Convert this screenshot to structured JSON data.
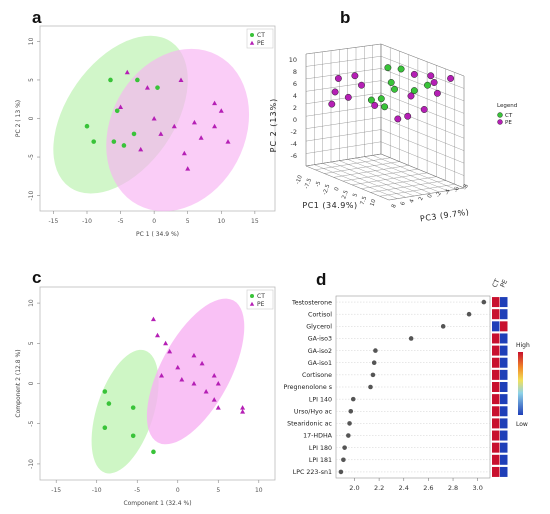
{
  "panels": {
    "a": {
      "letter": "a"
    },
    "b": {
      "letter": "b"
    },
    "c": {
      "letter": "c"
    },
    "d": {
      "letter": "d"
    }
  },
  "colors": {
    "ct": "#39c339",
    "pe": "#b51fb5",
    "ct_fill": "#c9f5bf",
    "pe_fill": "#f7b2f3"
  },
  "chart_data": [
    {
      "id": "a",
      "type": "scatter",
      "title": "",
      "xlabel": "PC 1 ( 34.9 %)",
      "ylabel": "PC 2 ( 13 %)",
      "xlim": [
        -17,
        18
      ],
      "ylim": [
        -12,
        12
      ],
      "xticks": [
        -15,
        -10,
        -5,
        0,
        5,
        10,
        15
      ],
      "yticks": [
        -10,
        -5,
        0,
        5,
        10
      ],
      "legend": [
        "CT",
        "PE"
      ],
      "legend_position": "top-right",
      "series": [
        {
          "name": "CT",
          "marker": "circle",
          "x": [
            -6.5,
            -2.5,
            0.5,
            -5.5,
            -10,
            -9,
            -3,
            -4.5,
            -6
          ],
          "y": [
            5,
            5,
            4,
            1,
            -1,
            -3,
            -2,
            -3.5,
            -3
          ]
        },
        {
          "name": "PE",
          "marker": "triangle",
          "x": [
            -4,
            -1,
            4,
            9,
            10,
            -5,
            0,
            3,
            6,
            9,
            11,
            1,
            7,
            -2,
            4.5,
            5
          ],
          "y": [
            6,
            4,
            5,
            2,
            1,
            1.5,
            0,
            -1,
            -0.5,
            -1,
            -3,
            -2,
            -2.5,
            -4,
            -4.5,
            -6.5
          ]
        }
      ]
    },
    {
      "id": "b",
      "type": "scatter",
      "title": "",
      "xlabel": "PC1 (34.9%)",
      "ylabel": "PC 2 (13%)",
      "zlabel": "PC3 (9.7%)",
      "yticks": [
        "10",
        "8",
        "6",
        "4",
        "2",
        "0",
        "-2",
        "-4",
        "-6"
      ],
      "xticks": [
        "-10",
        "-7.5",
        "-5",
        "-2.5",
        "0",
        "2.5",
        "5",
        "7.5",
        "10"
      ],
      "zticks": [
        "8",
        "6",
        "4",
        "2",
        "0",
        "-2",
        "-4",
        "-6",
        "-8"
      ],
      "legend_title": "Legend",
      "legend": [
        "CT",
        "PE"
      ],
      "legend_position": "right",
      "series": [
        {
          "name": "CT",
          "points": [
            [
              8.5,
              60
            ],
            [
              6.5,
              61
            ],
            [
              7,
              50
            ],
            [
              7.5,
              45
            ],
            [
              4,
              37
            ],
            [
              5.5,
              38
            ],
            [
              6,
              32
            ],
            [
              10.5,
              44
            ],
            [
              12.5,
              48
            ]
          ]
        },
        {
          "name": "PE",
          "points": [
            [
              1.5,
              55
            ],
            [
              -1,
              53
            ],
            [
              2.5,
              48
            ],
            [
              -1.5,
              43
            ],
            [
              0.5,
              39
            ],
            [
              -2,
              34
            ],
            [
              4.5,
              33
            ],
            [
              10,
              40
            ],
            [
              10.5,
              56
            ],
            [
              13,
              55
            ],
            [
              13.5,
              50
            ],
            [
              14,
              42
            ],
            [
              16,
              53
            ],
            [
              8,
              23
            ],
            [
              9.5,
              25
            ],
            [
              12,
              30
            ]
          ]
        }
      ]
    },
    {
      "id": "c",
      "type": "scatter",
      "title": "",
      "xlabel": "Component 1 (32.4 %)",
      "ylabel": "Component 2 (12.8 %)",
      "xlim": [
        -17,
        12
      ],
      "ylim": [
        -12,
        12
      ],
      "xticks": [
        -15,
        -10,
        -5,
        0,
        5,
        10
      ],
      "yticks": [
        -10,
        -5,
        0,
        5,
        10
      ],
      "legend": [
        "CT",
        "PE"
      ],
      "legend_position": "top-right",
      "series": [
        {
          "name": "CT",
          "marker": "circle",
          "x": [
            -9,
            -8.5,
            -5.5,
            -9,
            -5.5,
            -3
          ],
          "y": [
            -1,
            -2.5,
            -3,
            -5.5,
            -6.5,
            -8.5
          ]
        },
        {
          "name": "PE",
          "marker": "triangle",
          "x": [
            -3,
            -2.5,
            -1.5,
            -1,
            0,
            2,
            3,
            -2,
            0.5,
            2,
            4.5,
            5,
            3.5,
            4.5,
            5,
            8,
            8
          ],
          "y": [
            8,
            6,
            5,
            4,
            2,
            3.5,
            2.5,
            1,
            0.5,
            0,
            1,
            0,
            -1,
            -2,
            -3,
            -3,
            -3.5
          ]
        }
      ]
    },
    {
      "id": "d",
      "type": "scatter",
      "title": "",
      "xlabel": "",
      "ylabel": "",
      "xlim": [
        1.85,
        3.1
      ],
      "xticks": [
        "2.0",
        "2.2",
        "2.4",
        "2.6",
        "2.8",
        "3.0"
      ],
      "categories": [
        "Testosterone",
        "Cortisol",
        "Glycerol",
        "GA-iso3",
        "GA-iso2",
        "GA-iso1",
        "Cortisone",
        "Pregnenolone s",
        "LPI 140",
        "Urso/Hyo ac",
        "Stearidonic ac",
        "17-HDHA",
        "LPI 180",
        "LPI 181",
        "LPC 223-sn1"
      ],
      "values": [
        3.05,
        2.93,
        2.72,
        2.46,
        2.17,
        2.16,
        2.15,
        2.13,
        1.99,
        1.97,
        1.96,
        1.95,
        1.92,
        1.91,
        1.89
      ],
      "heatmap_columns": [
        "CT",
        "PE"
      ],
      "heatmap_ct_high": [
        true,
        true,
        false,
        true,
        true,
        true,
        true,
        true,
        true,
        true,
        true,
        true,
        true,
        true,
        true
      ],
      "colorbar": {
        "high": "High",
        "low": "Low"
      }
    }
  ]
}
